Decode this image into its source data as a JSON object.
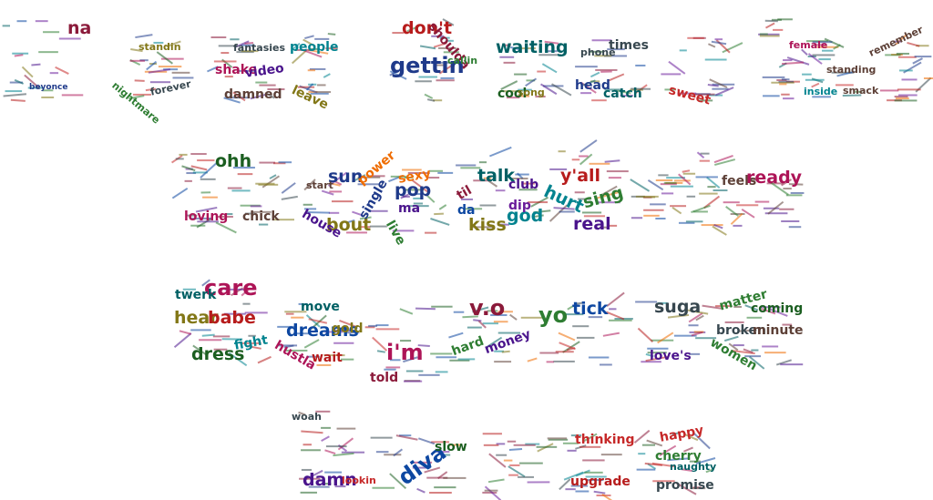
{
  "palette": [
    "#8b1a3a",
    "#1f3a8a",
    "#2e7d32",
    "#6a1b9a",
    "#00838f",
    "#b71c1c",
    "#ef6c00",
    "#827717",
    "#4a148c",
    "#1b5e20",
    "#ad1457",
    "#0d47a1",
    "#5d4037",
    "#006064",
    "#c62828",
    "#37474f"
  ],
  "words": [
    {
      "text": "na",
      "size": "lg",
      "c": 0
    },
    {
      "text": "beyonce",
      "size": "xs",
      "c": 1
    },
    {
      "text": "standin",
      "size": "sm",
      "c": 7
    },
    {
      "text": "nightmare",
      "size": "sm",
      "c": 2
    },
    {
      "text": "forever",
      "size": "sm",
      "c": 15
    },
    {
      "text": "fantasies",
      "size": "sm",
      "c": 15
    },
    {
      "text": "shake",
      "size": "md",
      "c": 10
    },
    {
      "text": "video",
      "size": "md",
      "c": 8
    },
    {
      "text": "damned",
      "size": "md",
      "c": 12
    },
    {
      "text": "people",
      "size": "md",
      "c": 4
    },
    {
      "text": "leave",
      "size": "md",
      "c": 7
    },
    {
      "text": "don't",
      "size": "lg",
      "c": 5
    },
    {
      "text": "shoulda",
      "size": "md",
      "c": 0
    },
    {
      "text": "gettin",
      "size": "xl",
      "c": 1
    },
    {
      "text": "callin",
      "size": "sm",
      "c": 2
    },
    {
      "text": "waiting",
      "size": "lg",
      "c": 13
    },
    {
      "text": "cool",
      "size": "md",
      "c": 9
    },
    {
      "text": "song",
      "size": "sm",
      "c": 7
    },
    {
      "text": "phone",
      "size": "sm",
      "c": 15
    },
    {
      "text": "head",
      "size": "md",
      "c": 1
    },
    {
      "text": "times",
      "size": "md",
      "c": 15
    },
    {
      "text": "catch",
      "size": "md",
      "c": 13
    },
    {
      "text": "sweet",
      "size": "md",
      "c": 14
    },
    {
      "text": "female",
      "size": "sm",
      "c": 10
    },
    {
      "text": "standing",
      "size": "sm",
      "c": 12
    },
    {
      "text": "inside",
      "size": "sm",
      "c": 4
    },
    {
      "text": "smack",
      "size": "sm",
      "c": 12
    },
    {
      "text": "remember",
      "size": "sm",
      "c": 12
    },
    {
      "text": "ohh",
      "size": "lg",
      "c": 9
    },
    {
      "text": "loving",
      "size": "md",
      "c": 10
    },
    {
      "text": "chick",
      "size": "md",
      "c": 12
    },
    {
      "text": "sun",
      "size": "lg",
      "c": 1
    },
    {
      "text": "power",
      "size": "md",
      "c": 6
    },
    {
      "text": "start",
      "size": "sm",
      "c": 12
    },
    {
      "text": "bout",
      "size": "lg",
      "c": 7
    },
    {
      "text": "house",
      "size": "md",
      "c": 8
    },
    {
      "text": "single",
      "size": "md",
      "c": 1
    },
    {
      "text": "sexy",
      "size": "md",
      "c": 6
    },
    {
      "text": "pop",
      "size": "lg",
      "c": 1
    },
    {
      "text": "ma",
      "size": "md",
      "c": 8
    },
    {
      "text": "live",
      "size": "md",
      "c": 2
    },
    {
      "text": "talk",
      "size": "lg",
      "c": 13
    },
    {
      "text": "til",
      "size": "md",
      "c": 0
    },
    {
      "text": "da",
      "size": "md",
      "c": 11
    },
    {
      "text": "kiss",
      "size": "lg",
      "c": 7
    },
    {
      "text": "god",
      "size": "lg",
      "c": 4
    },
    {
      "text": "club",
      "size": "md",
      "c": 8
    },
    {
      "text": "dip",
      "size": "md",
      "c": 3
    },
    {
      "text": "y'all",
      "size": "lg",
      "c": 5
    },
    {
      "text": "hurt",
      "size": "lg",
      "c": 4
    },
    {
      "text": "sing",
      "size": "lg",
      "c": 2
    },
    {
      "text": "real",
      "size": "lg",
      "c": 8
    },
    {
      "text": "feels",
      "size": "md",
      "c": 12
    },
    {
      "text": "ready",
      "size": "lg",
      "c": 10
    },
    {
      "text": "care",
      "size": "xl",
      "c": 10
    },
    {
      "text": "twerk",
      "size": "md",
      "c": 13
    },
    {
      "text": "hear",
      "size": "lg",
      "c": 7
    },
    {
      "text": "babe",
      "size": "lg",
      "c": 5
    },
    {
      "text": "dress",
      "size": "lg",
      "c": 9
    },
    {
      "text": "fight",
      "size": "md",
      "c": 4
    },
    {
      "text": "move",
      "size": "md",
      "c": 13
    },
    {
      "text": "dreams",
      "size": "lg",
      "c": 11
    },
    {
      "text": "gold",
      "size": "md",
      "c": 7
    },
    {
      "text": "hustla",
      "size": "md",
      "c": 10
    },
    {
      "text": "wait",
      "size": "md",
      "c": 5
    },
    {
      "text": "i'm",
      "size": "xl",
      "c": 10
    },
    {
      "text": "told",
      "size": "md",
      "c": 0
    },
    {
      "text": "v.o",
      "size": "xl",
      "c": 0
    },
    {
      "text": "hard",
      "size": "md",
      "c": 2
    },
    {
      "text": "money",
      "size": "md",
      "c": 8
    },
    {
      "text": "yo",
      "size": "xl",
      "c": 2
    },
    {
      "text": "tick",
      "size": "lg",
      "c": 11
    },
    {
      "text": "suga",
      "size": "lg",
      "c": 15
    },
    {
      "text": "love's",
      "size": "md",
      "c": 8
    },
    {
      "text": "matter",
      "size": "md",
      "c": 2
    },
    {
      "text": "coming",
      "size": "md",
      "c": 9
    },
    {
      "text": "broken",
      "size": "md",
      "c": 15
    },
    {
      "text": "minute",
      "size": "md",
      "c": 12
    },
    {
      "text": "women",
      "size": "md",
      "c": 2
    },
    {
      "text": "woah",
      "size": "sm",
      "c": 15
    },
    {
      "text": "damn",
      "size": "lg",
      "c": 8
    },
    {
      "text": "lookin",
      "size": "sm",
      "c": 14
    },
    {
      "text": "diva",
      "size": "xl",
      "c": 11
    },
    {
      "text": "slow",
      "size": "md",
      "c": 9
    },
    {
      "text": "thinking",
      "size": "md",
      "c": 14
    },
    {
      "text": "upgrade",
      "size": "md",
      "c": 5
    },
    {
      "text": "happy",
      "size": "md",
      "c": 14
    },
    {
      "text": "cherry",
      "size": "md",
      "c": 2
    },
    {
      "text": "naughty",
      "size": "sm",
      "c": 13
    },
    {
      "text": "promise",
      "size": "md",
      "c": 15
    }
  ]
}
